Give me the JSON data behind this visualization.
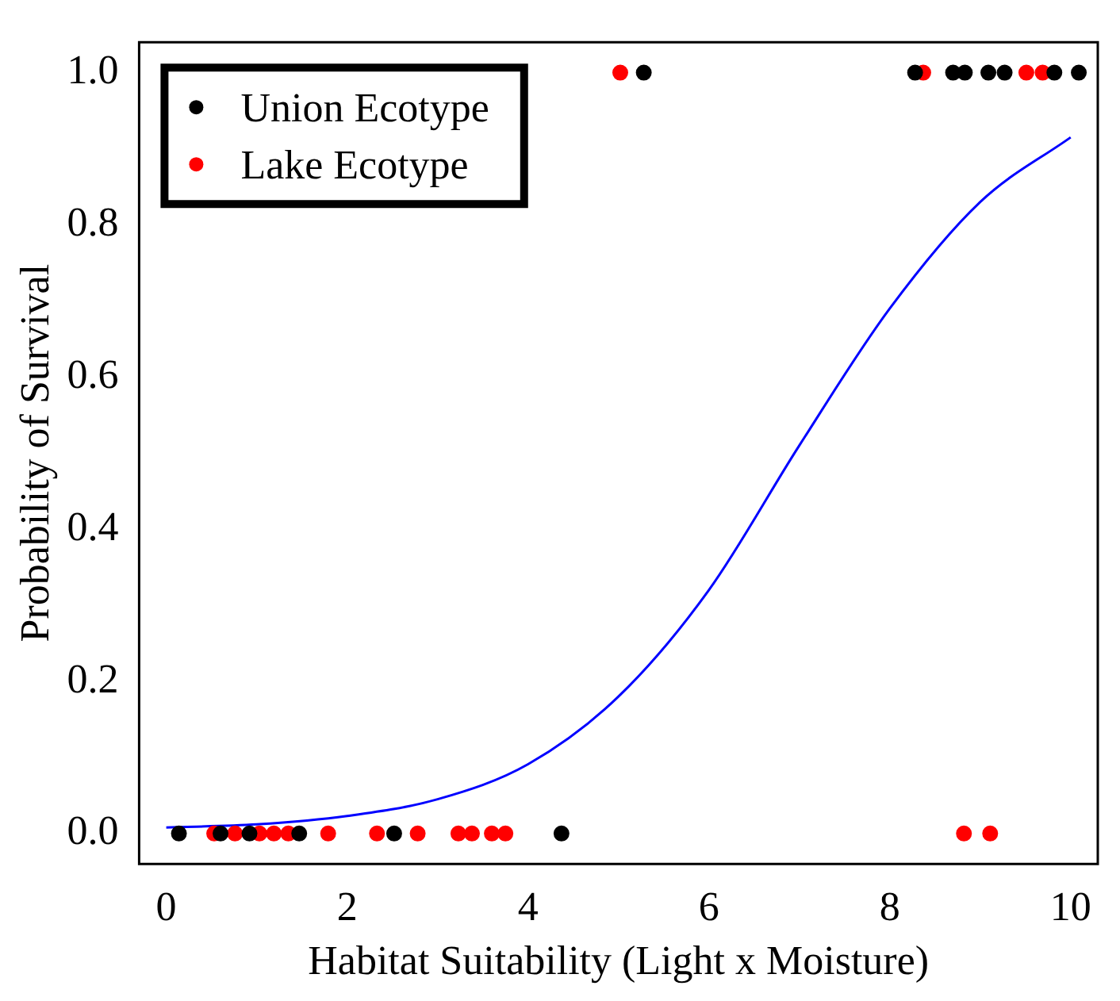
{
  "chart_data": {
    "type": "scatter",
    "xlabel": "Habitat Suitability (Light x Moisture)",
    "ylabel": "Probability of Survival",
    "xlim": [
      -0.3,
      10.3
    ],
    "ylim": [
      -0.04,
      1.04
    ],
    "xticks": [
      0,
      2,
      4,
      6,
      8,
      10
    ],
    "yticks": [
      {
        "value": 0,
        "label": "0.0"
      },
      0.2,
      0.4,
      0.6,
      0.8,
      {
        "value": 1,
        "label": "1.0"
      }
    ],
    "legend": "top left",
    "marker": "circle",
    "grid": false,
    "series": [
      {
        "name": "Union Ecotype",
        "color": "#000000",
        "x": [
          0.14,
          0.6,
          0.92,
          1.47,
          2.52,
          4.37,
          5.28,
          8.28,
          8.7,
          8.83,
          9.09,
          9.27,
          9.82,
          10.09
        ],
        "values": [
          0,
          0,
          0,
          0,
          0,
          0,
          1,
          1,
          1,
          1,
          1,
          1,
          1,
          1
        ]
      },
      {
        "name": "Lake Ecotype",
        "color": "#ff0000",
        "x": [
          0.53,
          0.76,
          1.03,
          1.19,
          1.35,
          1.79,
          2.33,
          2.78,
          3.23,
          3.38,
          3.6,
          3.75,
          8.82,
          9.11,
          5.02,
          8.37,
          9.51,
          9.69
        ],
        "values": [
          0,
          0,
          0,
          0,
          0,
          0,
          0,
          0,
          0,
          0,
          0,
          0,
          0,
          0,
          1,
          1,
          1,
          1
        ]
      },
      {
        "type": "line",
        "color": "#0000ff",
        "marker": "none",
        "x": [
          0,
          1,
          2,
          3,
          4,
          5,
          6,
          7,
          8,
          9,
          10
        ],
        "values": [
          0.008,
          0.012,
          0.023,
          0.045,
          0.091,
          0.18,
          0.32,
          0.51,
          0.69,
          0.83,
          0.915
        ]
      }
    ]
  }
}
